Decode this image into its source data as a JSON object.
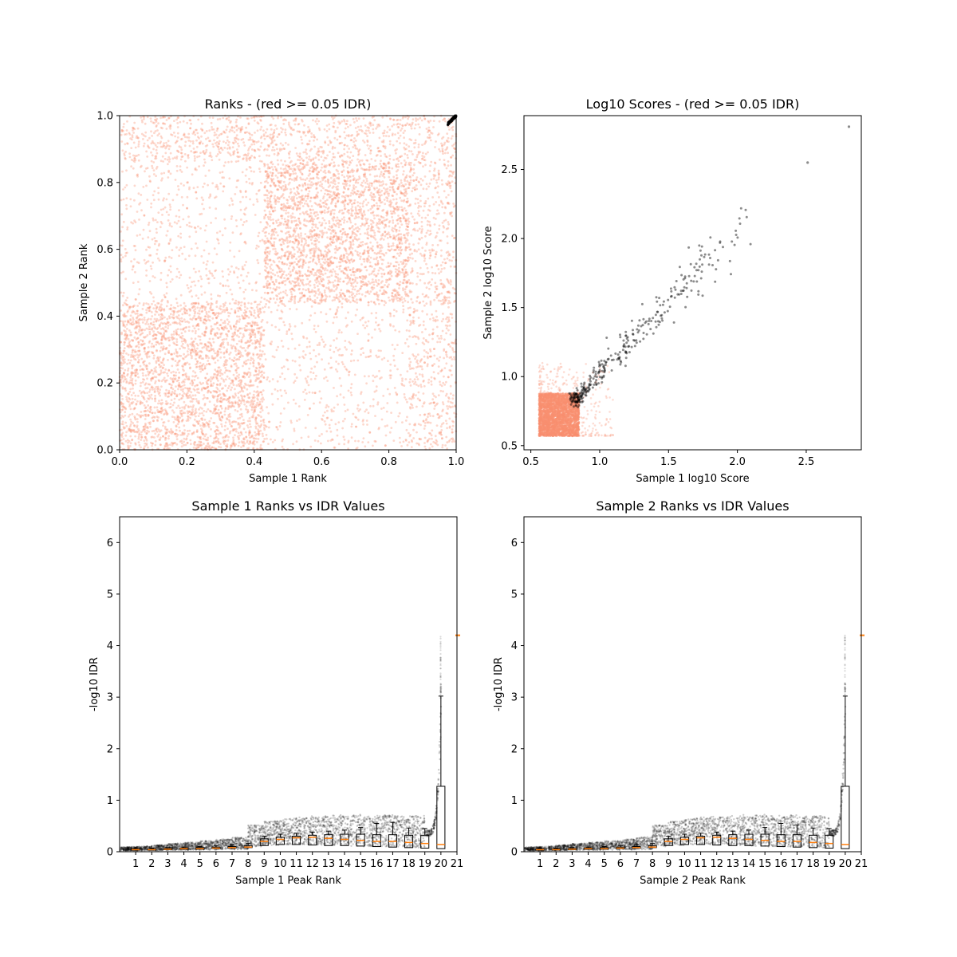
{
  "colors": {
    "passing": "#000000",
    "failing": "#fa8f70",
    "median": "#ff7f0e",
    "box": "#000000"
  },
  "chart_data": [
    {
      "type": "scatter",
      "title": "Ranks - (red >= 0.05 IDR)",
      "xlabel": "Sample 1 Rank",
      "ylabel": "Sample 2 Rank",
      "xlim": [
        0.0,
        1.0
      ],
      "ylim": [
        0.0,
        1.0
      ],
      "xticks": [
        "0.0",
        "0.2",
        "0.4",
        "0.6",
        "0.8",
        "1.0"
      ],
      "yticks": [
        "0.0",
        "0.2",
        "0.4",
        "0.6",
        "0.8",
        "1.0"
      ],
      "grid": false,
      "series": [
        {
          "color": "failing",
          "regions": [
            {
              "x": [
                0.0,
                0.43
              ],
              "y": [
                0.0,
                0.44
              ],
              "density": "high"
            },
            {
              "x": [
                0.43,
                0.86
              ],
              "y": [
                0.44,
                0.86
              ],
              "density": "high"
            },
            {
              "x": [
                0.0,
                0.43
              ],
              "y": [
                0.44,
                0.86
              ],
              "density": "low"
            },
            {
              "x": [
                0.43,
                0.86
              ],
              "y": [
                0.0,
                0.44
              ],
              "density": "low"
            },
            {
              "x": [
                0.86,
                1.0
              ],
              "y": [
                0.0,
                1.0
              ],
              "density": "medium"
            },
            {
              "x": [
                0.0,
                0.86
              ],
              "y": [
                0.86,
                1.0
              ],
              "density": "medium"
            }
          ]
        },
        {
          "color": "passing",
          "x_range": [
            0.975,
            1.0
          ],
          "y_range": [
            0.975,
            1.0
          ]
        }
      ]
    },
    {
      "type": "scatter",
      "title": "Log10 Scores - (red >= 0.05 IDR)",
      "xlabel": "Sample 1 log10 Score",
      "ylabel": "Sample 2 log10 Score",
      "xlim": [
        0.45,
        2.9
      ],
      "ylim": [
        0.47,
        2.89
      ],
      "xticks": [
        "0.5",
        "1.0",
        "1.5",
        "2.0",
        "2.5"
      ],
      "yticks": [
        "0.5",
        "1.0",
        "1.5",
        "2.0",
        "2.5"
      ],
      "grid": false,
      "series": [
        {
          "color": "failing",
          "dense_block": {
            "x": [
              0.56,
              0.85
            ],
            "y": [
              0.57,
              0.88
            ]
          },
          "spread_max": 1.1
        },
        {
          "color": "passing",
          "trend_from": [
            0.82,
            0.83
          ],
          "trend_to": [
            2.02,
            2.09
          ],
          "outliers": [
            [
              2.51,
              2.55
            ],
            [
              2.81,
              2.81
            ]
          ]
        }
      ]
    },
    {
      "type": "box",
      "title": "Sample 1 Ranks vs IDR Values",
      "xlabel": "Sample 1 Peak Rank",
      "ylabel": "-log10 IDR",
      "xlim": [
        0,
        21
      ],
      "ylim": [
        0,
        6.5
      ],
      "xticks": [
        "1",
        "2",
        "3",
        "4",
        "5",
        "6",
        "7",
        "8",
        "9",
        "10",
        "11",
        "12",
        "13",
        "14",
        "15",
        "16",
        "17",
        "18",
        "19",
        "20",
        "21"
      ],
      "yticks": [
        "0",
        "1",
        "2",
        "3",
        "4",
        "5",
        "6"
      ],
      "grid": false,
      "medians": [
        0.04,
        0.04,
        0.05,
        0.06,
        0.06,
        0.07,
        0.08,
        0.09,
        0.2,
        0.24,
        0.27,
        0.28,
        0.26,
        0.24,
        0.22,
        0.2,
        0.2,
        0.18,
        0.16,
        0.14
      ],
      "q1": [
        0.03,
        0.03,
        0.04,
        0.05,
        0.05,
        0.06,
        0.07,
        0.08,
        0.12,
        0.14,
        0.14,
        0.13,
        0.12,
        0.12,
        0.11,
        0.1,
        0.09,
        0.08,
        0.07,
        0.06
      ],
      "q3": [
        0.05,
        0.05,
        0.06,
        0.07,
        0.08,
        0.09,
        0.1,
        0.12,
        0.25,
        0.28,
        0.3,
        0.32,
        0.33,
        0.34,
        0.34,
        0.33,
        0.33,
        0.32,
        0.32,
        1.27
      ],
      "whisker_high": [
        0.06,
        0.07,
        0.08,
        0.09,
        0.1,
        0.12,
        0.14,
        0.16,
        0.3,
        0.34,
        0.36,
        0.38,
        0.4,
        0.42,
        0.47,
        0.55,
        0.57,
        0.46,
        0.45,
        3.02
      ],
      "max_value": 4.2
    },
    {
      "type": "box",
      "title": "Sample 2 Ranks vs IDR Values",
      "xlabel": "Sample 2 Peak Rank",
      "ylabel": "-log10 IDR",
      "xlim": [
        0,
        21
      ],
      "ylim": [
        0,
        6.5
      ],
      "xticks": [
        "1",
        "2",
        "3",
        "4",
        "5",
        "6",
        "7",
        "8",
        "9",
        "10",
        "11",
        "12",
        "13",
        "14",
        "15",
        "16",
        "17",
        "18",
        "19",
        "20",
        "21"
      ],
      "yticks": [
        "0",
        "1",
        "2",
        "3",
        "4",
        "5",
        "6"
      ],
      "grid": false,
      "medians": [
        0.04,
        0.04,
        0.05,
        0.06,
        0.06,
        0.07,
        0.08,
        0.09,
        0.2,
        0.24,
        0.27,
        0.28,
        0.26,
        0.24,
        0.22,
        0.2,
        0.2,
        0.18,
        0.16,
        0.14
      ],
      "q1": [
        0.03,
        0.03,
        0.04,
        0.05,
        0.05,
        0.06,
        0.07,
        0.08,
        0.12,
        0.14,
        0.14,
        0.13,
        0.12,
        0.12,
        0.11,
        0.1,
        0.09,
        0.08,
        0.07,
        0.06
      ],
      "q3": [
        0.05,
        0.05,
        0.06,
        0.07,
        0.08,
        0.09,
        0.1,
        0.12,
        0.25,
        0.28,
        0.3,
        0.32,
        0.33,
        0.34,
        0.34,
        0.33,
        0.33,
        0.32,
        0.32,
        1.27
      ],
      "whisker_high": [
        0.06,
        0.07,
        0.08,
        0.09,
        0.1,
        0.12,
        0.14,
        0.16,
        0.3,
        0.34,
        0.36,
        0.38,
        0.4,
        0.42,
        0.47,
        0.55,
        0.52,
        0.46,
        0.45,
        3.02
      ],
      "max_value": 4.2
    }
  ]
}
